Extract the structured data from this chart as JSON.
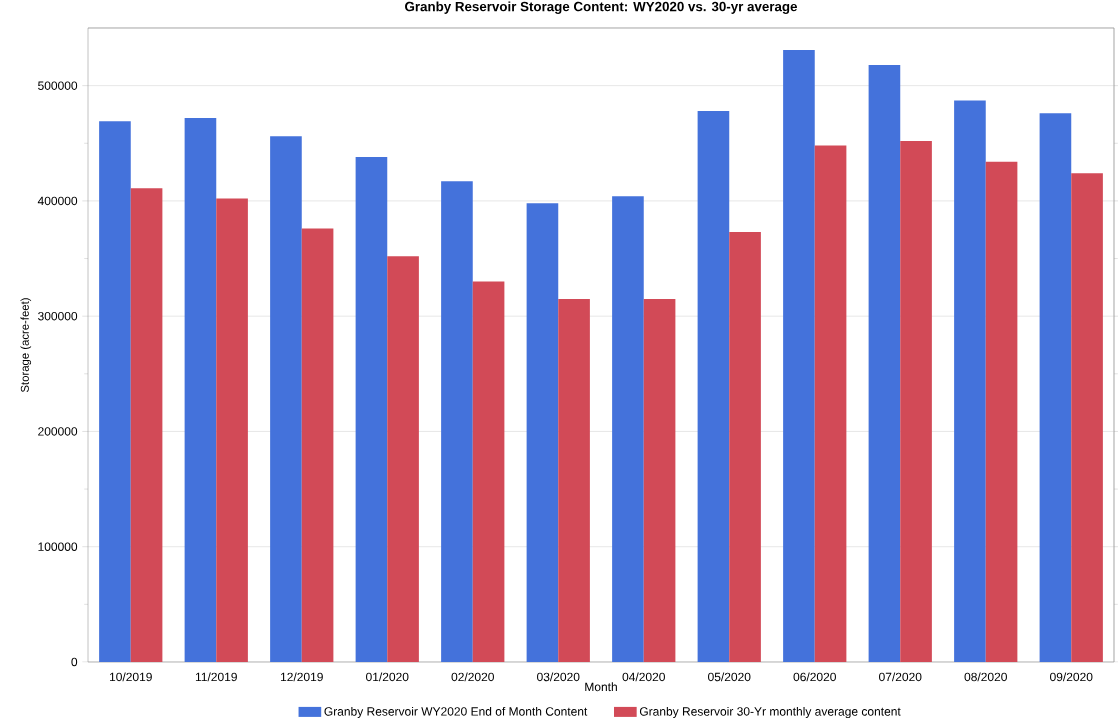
{
  "chart_data": {
    "type": "bar",
    "title": "Granby Reservoir Storage Content: WY2020 vs. 30-yr average",
    "xlabel": "Month",
    "ylabel": "Storage (acre-feet)",
    "categories": [
      "10/2019",
      "11/2019",
      "12/2019",
      "01/2020",
      "02/2020",
      "03/2020",
      "04/2020",
      "05/2020",
      "06/2020",
      "07/2020",
      "08/2020",
      "09/2020"
    ],
    "series": [
      {
        "name": "Granby Reservoir WY2020 End of Month Content",
        "color": "#4472db",
        "values": [
          469000,
          472000,
          456000,
          438000,
          417000,
          398000,
          404000,
          478000,
          531000,
          518000,
          487000,
          476000
        ]
      },
      {
        "name": "Granby Reservoir 30-Yr monthly average content",
        "color": "#d24a57",
        "values": [
          411000,
          402000,
          376000,
          352000,
          330000,
          315000,
          315000,
          373000,
          448000,
          452000,
          434000,
          424000
        ]
      }
    ],
    "ylim": [
      0,
      550000
    ],
    "yticks": [
      0,
      100000,
      200000,
      300000,
      400000,
      500000
    ],
    "grid": "y",
    "legend": "bottom"
  }
}
